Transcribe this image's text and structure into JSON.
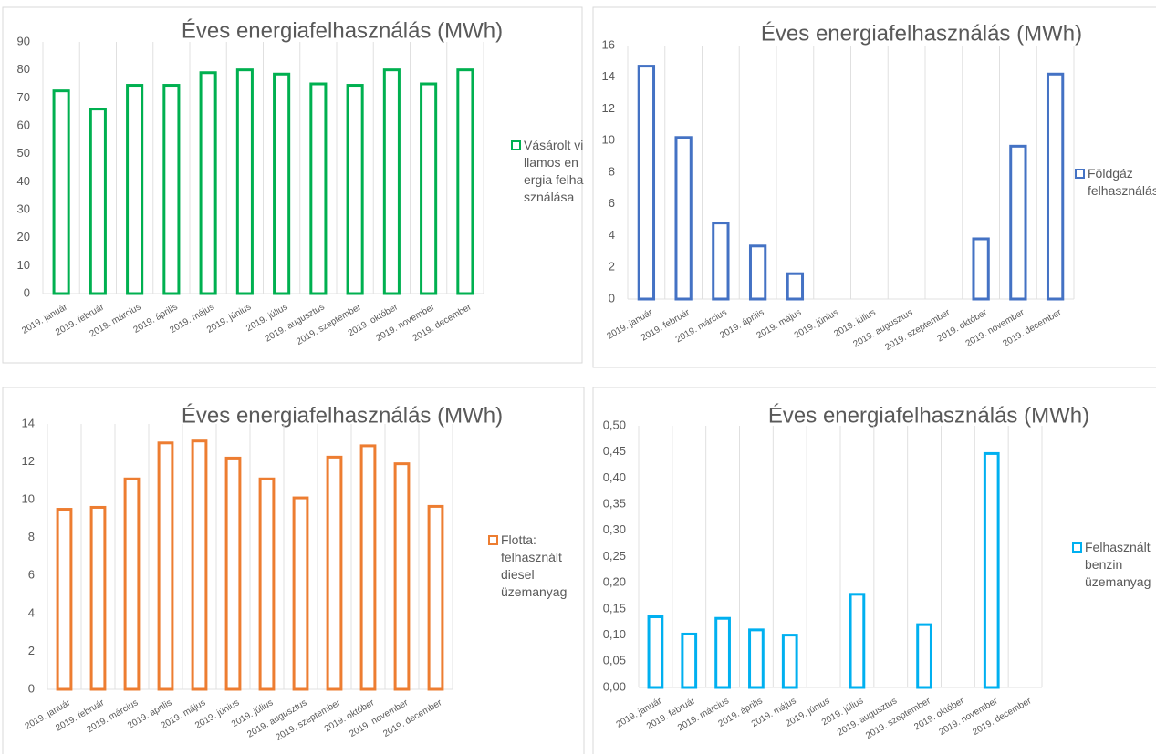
{
  "chart_data": [
    {
      "type": "bar",
      "title": "Éves energiafelhasználás (MWh)",
      "categories": [
        "2019. január",
        "2019. február",
        "2019. március",
        "2019. április",
        "2019. május",
        "2019. június",
        "2019. július",
        "2019. augusztus",
        "2019. szeptember",
        "2019. október",
        "2019. november",
        "2019. december"
      ],
      "series": [
        {
          "name": "Vásárolt villamos energia felhasználása",
          "color": "#00b050",
          "values": [
            72.5,
            66,
            74.5,
            74.5,
            79,
            80,
            78.5,
            75,
            74.5,
            80,
            75,
            80
          ]
        }
      ],
      "ylim": [
        0,
        90
      ],
      "yticks": [
        0,
        10,
        20,
        30,
        40,
        50,
        60,
        70,
        80,
        90
      ],
      "grid": "vertical",
      "legend": "right"
    },
    {
      "type": "bar",
      "title": "Éves energiafelhasználás (MWh)",
      "categories": [
        "2019. január",
        "2019. február",
        "2019. március",
        "2019. április",
        "2019. május",
        "2019. június",
        "2019. július",
        "2019. augusztus",
        "2019. szeptember",
        "2019. október",
        "2019. november",
        "2019. december"
      ],
      "series": [
        {
          "name": "Földgáz felhasználás",
          "color": "#4472c4",
          "values": [
            14.7,
            10.2,
            4.8,
            3.35,
            1.6,
            null,
            null,
            null,
            null,
            3.8,
            9.65,
            14.2
          ]
        }
      ],
      "ylim": [
        0,
        16
      ],
      "yticks": [
        0,
        2,
        4,
        6,
        8,
        10,
        12,
        14,
        16
      ],
      "grid": "vertical",
      "legend": "right"
    },
    {
      "type": "bar",
      "title": "Éves energiafelhasználás (MWh)",
      "categories": [
        "2019. január",
        "2019. február",
        "2019. március",
        "2019. április",
        "2019. május",
        "2019. június",
        "2019. július",
        "2019. augusztus",
        "2019. szeptember",
        "2019. október",
        "2019. november",
        "2019. december"
      ],
      "series": [
        {
          "name": "Flotta: felhasznált diesel üzemanyag",
          "color": "#ed7d31",
          "values": [
            9.5,
            9.6,
            11.1,
            13,
            13.1,
            12.2,
            11.1,
            10.1,
            12.25,
            12.85,
            11.9,
            9.65
          ]
        }
      ],
      "ylim": [
        0,
        14
      ],
      "yticks": [
        0,
        2,
        4,
        6,
        8,
        10,
        12,
        14
      ],
      "grid": "vertical",
      "legend": "right"
    },
    {
      "type": "bar",
      "title": "Éves energiafelhasználás (MWh)",
      "categories": [
        "2019. január",
        "2019. február",
        "2019. március",
        "2019. április",
        "2019. május",
        "2019. június",
        "2019. július",
        "2019. augusztus",
        "2019. szeptember",
        "2019. október",
        "2019. november",
        "2019. december"
      ],
      "series": [
        {
          "name": "Felhasznált benzin üzemanyag",
          "color": "#00b0f0",
          "values": [
            0.135,
            0.102,
            0.132,
            0.11,
            0.1,
            null,
            0.178,
            null,
            0.12,
            null,
            0.447,
            null
          ]
        }
      ],
      "ylim": [
        0,
        0.5
      ],
      "yticks": [
        {
          "value": 0,
          "label": "0,00"
        },
        {
          "value": 0.05,
          "label": "0,05"
        },
        {
          "value": 0.1,
          "label": "0,10"
        },
        {
          "value": 0.15,
          "label": "0,15"
        },
        {
          "value": 0.2,
          "label": "0,20"
        },
        {
          "value": 0.25,
          "label": "0,25"
        },
        {
          "value": 0.3,
          "label": "0,30"
        },
        {
          "value": 0.35,
          "label": "0,35"
        },
        {
          "value": 0.4,
          "label": "0,40"
        },
        {
          "value": 0.45,
          "label": "0,45"
        },
        {
          "value": 0.5,
          "label": "0,50"
        }
      ],
      "grid": "vertical",
      "legend": "right"
    }
  ]
}
